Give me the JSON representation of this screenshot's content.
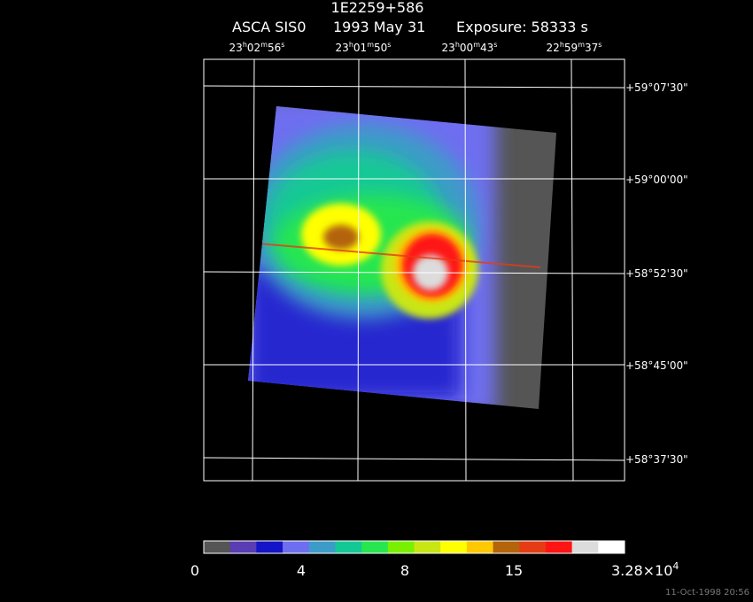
{
  "header": {
    "title": "1E2259+586",
    "instrument": "ASCA SIS0",
    "date": "1993 May 31",
    "exposure": "Exposure: 58333 s"
  },
  "ra_labels": [
    [
      [
        "23",
        "h"
      ],
      [
        "02",
        "m"
      ],
      [
        "56",
        "s"
      ]
    ],
    [
      [
        "23",
        "h"
      ],
      [
        "01",
        "m"
      ],
      [
        "50",
        "s"
      ]
    ],
    [
      [
        "23",
        "h"
      ],
      [
        "00",
        "m"
      ],
      [
        "43",
        "s"
      ]
    ],
    [
      [
        "22",
        "h"
      ],
      [
        "59",
        "m"
      ],
      [
        "37",
        "s"
      ]
    ]
  ],
  "dec_labels": [
    "+59°07'30\"",
    "+59°00'00\"",
    "+58°52'30\"",
    "+58°45'00\"",
    "+58°37'30\""
  ],
  "colorbar": {
    "colors": [
      "#555555",
      "#5a3cb4",
      "#1414c8",
      "#6e6ef0",
      "#3c9bc8",
      "#14c896",
      "#28e650",
      "#78f000",
      "#c8e614",
      "#ffff00",
      "#ffc800",
      "#b4640a",
      "#e63c14",
      "#ff1414",
      "#dcdcdc",
      "#ffffff"
    ],
    "labels": [
      "0",
      "4",
      "8",
      "15"
    ],
    "max_label": {
      "mantissa": "3.28×10",
      "exponent": "4"
    }
  },
  "footer": {
    "timestamp": "11-Oct-1998 20:56"
  }
}
